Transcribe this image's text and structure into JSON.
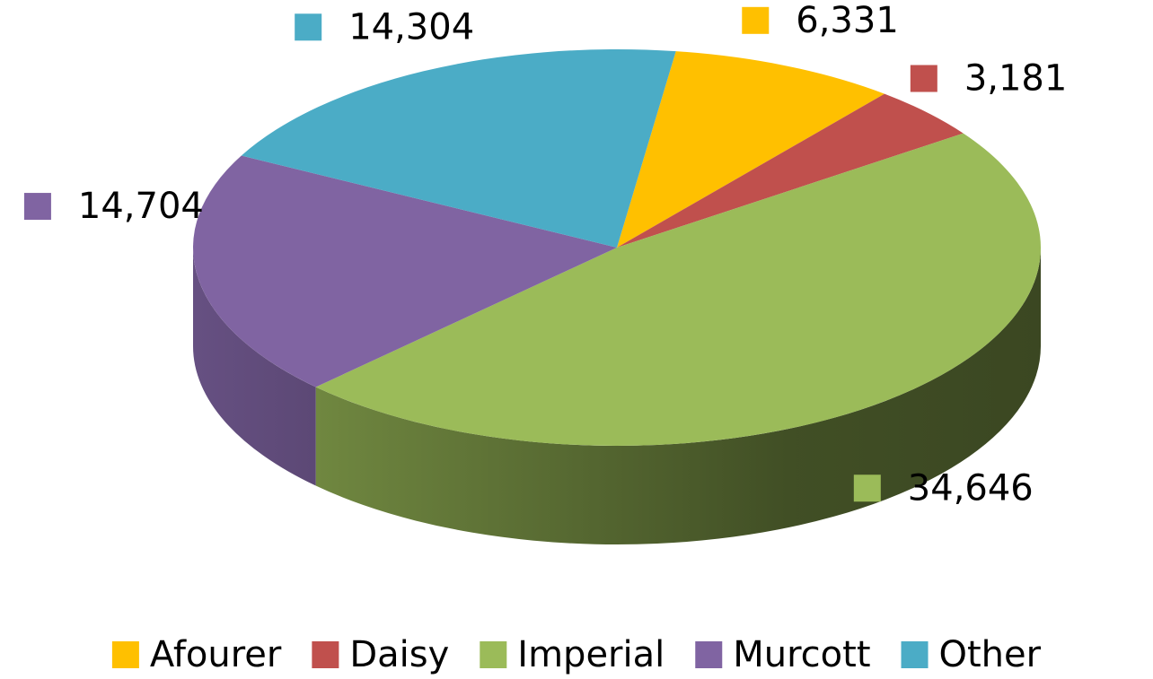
{
  "chart_data": {
    "type": "pie",
    "categories": [
      "Afourer",
      "Daisy",
      "Imperial",
      "Murcott",
      "Other"
    ],
    "values": [
      6331,
      3181,
      34646,
      14704,
      14304
    ],
    "value_labels": [
      "6,331",
      "3,181",
      "34,646",
      "14,704",
      "14,304"
    ],
    "colors": [
      "#FFC000",
      "#C0504D",
      "#9BBB59",
      "#8064A2",
      "#4BACC6"
    ],
    "legend": "bottom"
  }
}
